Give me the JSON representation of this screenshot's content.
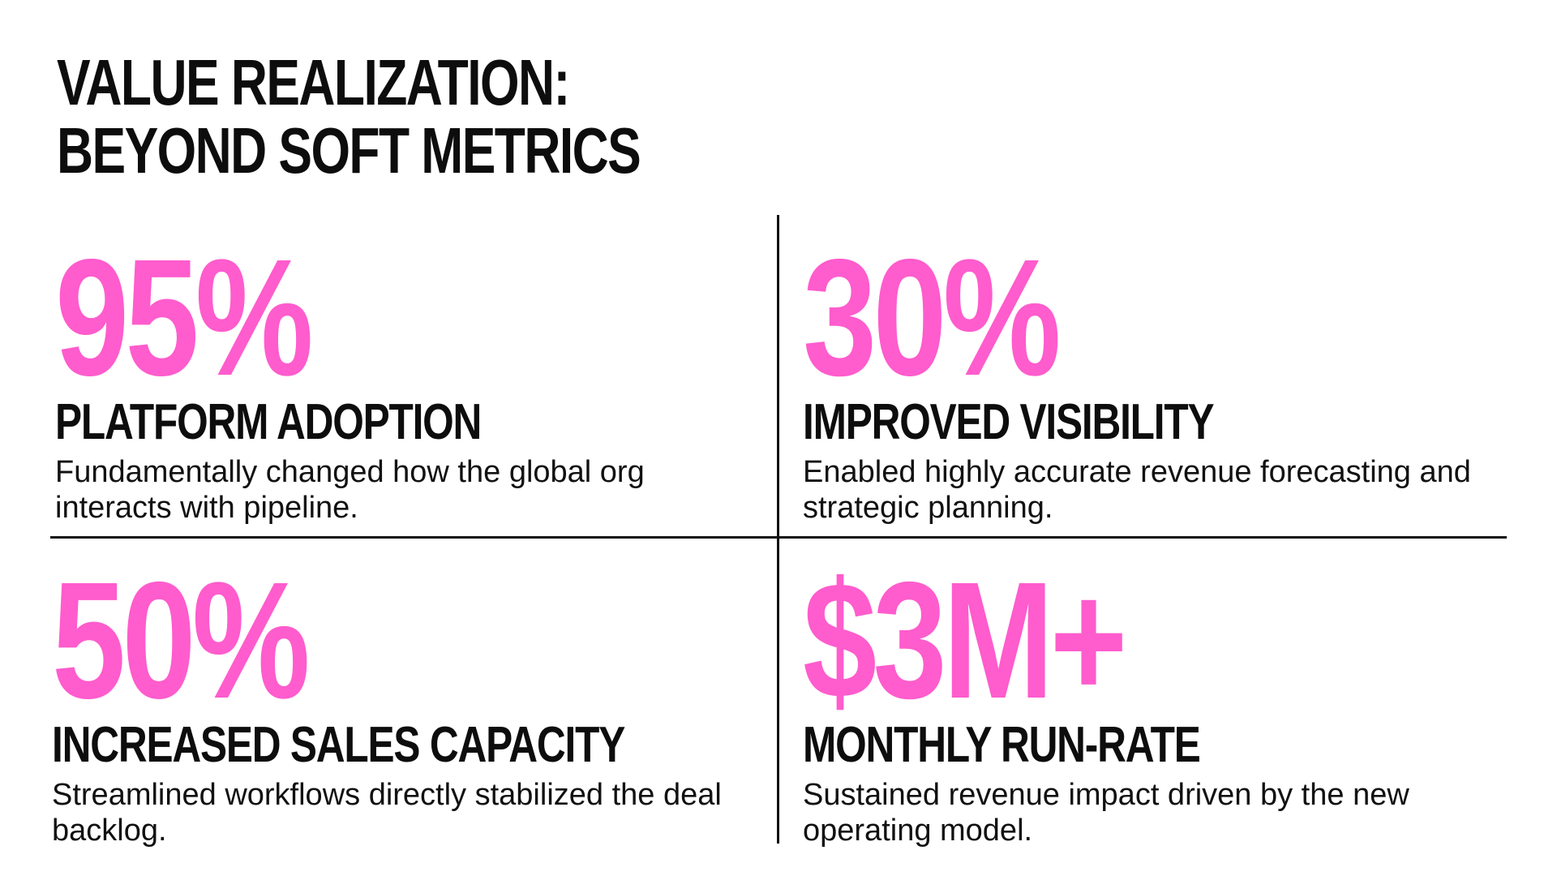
{
  "slide": {
    "title_line1": "VALUE REALIZATION:",
    "title_line2": "BEYOND SOFT METRICS"
  },
  "metrics": [
    {
      "value": "95%",
      "heading": "PLATFORM ADOPTION",
      "description": "Fundamentally changed how the global org interacts with pipeline."
    },
    {
      "value": "30%",
      "heading": "IMPROVED VISIBILITY",
      "description": "Enabled highly accurate revenue forecasting and strategic planning."
    },
    {
      "value": "50%",
      "heading": "INCREASED SALES CAPACITY",
      "description": "Streamlined workflows directly stabilized the deal backlog."
    },
    {
      "value": "$3M+",
      "heading": "MONTHLY RUN-RATE",
      "description": "Sustained revenue impact driven by the new operating model."
    }
  ],
  "colors": {
    "accent": "#ff5ccd",
    "text": "#0d0d0d",
    "background": "#ffffff"
  }
}
